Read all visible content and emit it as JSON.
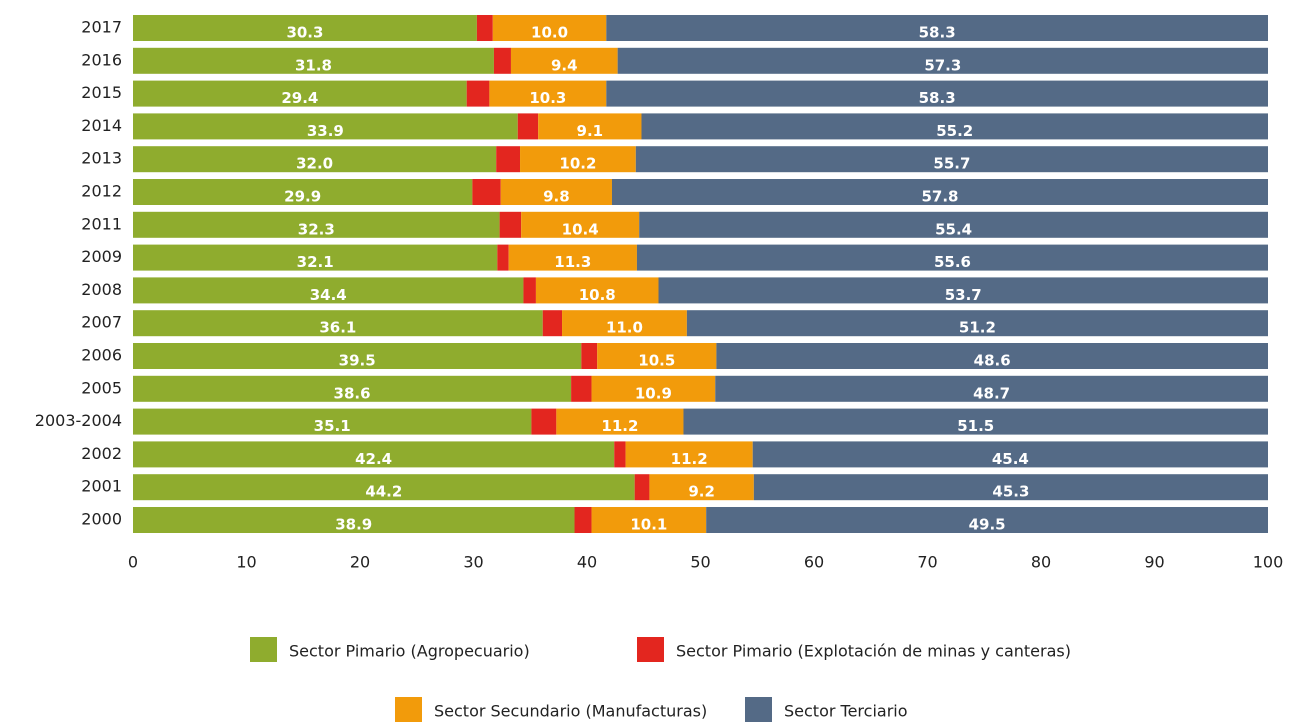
{
  "chart_data": {
    "type": "stacked_barh",
    "categories": [
      "2017",
      "2016",
      "2015",
      "2014",
      "2013",
      "2012",
      "2011",
      "2009",
      "2008",
      "2007",
      "2006",
      "2005",
      "2003-2004",
      "2002",
      "2001",
      "2000"
    ],
    "series": [
      {
        "name": "Sector Pimario (Agropecuario)",
        "color": "#8fac2e",
        "values": [
          30.3,
          31.8,
          29.4,
          33.9,
          32.0,
          29.9,
          32.3,
          32.1,
          34.4,
          36.1,
          39.5,
          38.6,
          35.1,
          42.4,
          44.2,
          38.9
        ],
        "value_labels": [
          "30.3",
          "31.8",
          "29.4",
          "33.9",
          "32.0",
          "29.9",
          "32.3",
          "32.1",
          "34.4",
          "36.1",
          "39.5",
          "38.6",
          "35.1",
          "42.4",
          "44.2",
          "38.9"
        ]
      },
      {
        "name": "Sector Pimario (Explotación de minas y canteras)",
        "color": "#e3261f",
        "values": [
          1.4,
          1.5,
          2.0,
          1.8,
          2.1,
          2.5,
          1.9,
          1.0,
          1.1,
          1.7,
          1.4,
          1.8,
          2.2,
          1.0,
          1.3,
          1.5
        ]
      },
      {
        "name": "Sector Secundario (Manufacturas)",
        "color": "#f29b0b",
        "values": [
          10.0,
          9.4,
          10.3,
          9.1,
          10.2,
          9.8,
          10.4,
          11.3,
          10.8,
          11.0,
          10.5,
          10.9,
          11.2,
          11.2,
          9.2,
          10.1
        ],
        "value_labels": [
          "10.0",
          "9.4",
          "10.3",
          "9.1",
          "10.2",
          "9.8",
          "10.4",
          "11.3",
          "10.8",
          "11.0",
          "10.5",
          "10.9",
          "11.2",
          "11.2",
          "9.2",
          "10.1"
        ]
      },
      {
        "name": "Sector Terciario",
        "color": "#546a86",
        "values": [
          58.3,
          57.3,
          58.3,
          55.2,
          55.7,
          57.8,
          55.4,
          55.6,
          53.7,
          51.2,
          48.6,
          48.7,
          51.5,
          45.4,
          45.3,
          49.5
        ],
        "value_labels": [
          "58.3",
          "57.3",
          "58.3",
          "55.2",
          "55.7",
          "57.8",
          "55.4",
          "55.6",
          "53.7",
          "51.2",
          "48.6",
          "48.7",
          "51.5",
          "45.4",
          "45.3",
          "49.5"
        ]
      }
    ],
    "xlim": [
      0,
      100
    ],
    "xticks": [
      0,
      10,
      20,
      30,
      40,
      50,
      60,
      70,
      80,
      90,
      100
    ]
  }
}
